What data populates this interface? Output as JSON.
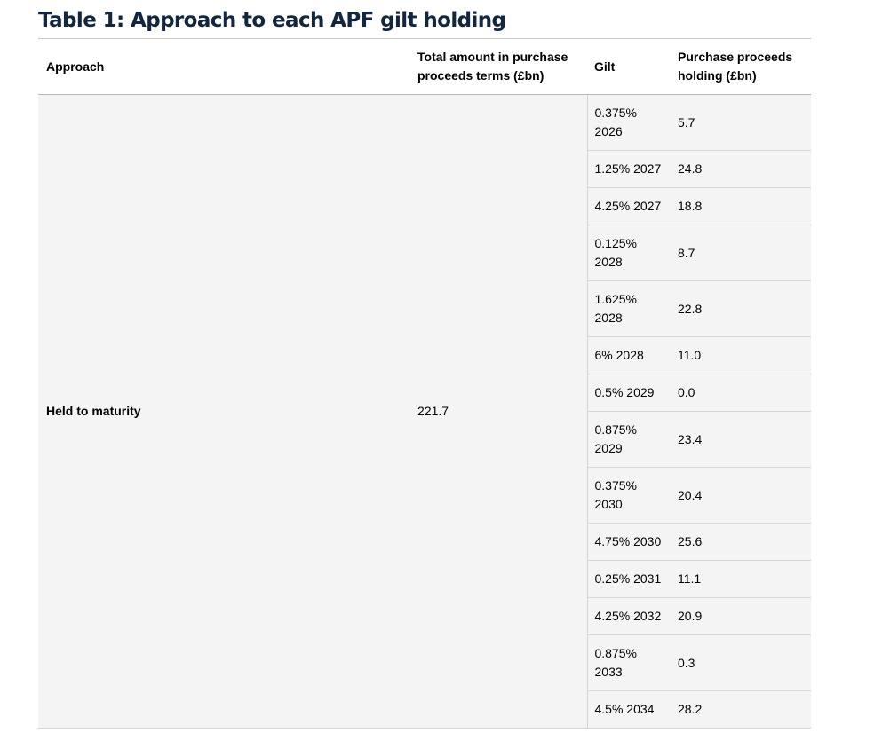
{
  "title": "Table 1: Approach to each APF gilt holding",
  "columns": {
    "approach": "Approach",
    "total": "Total amount in purchase proceeds terms (£bn)",
    "gilt": "Gilt",
    "holding": "Purchase proceeds holding (£bn)"
  },
  "group": {
    "approach": "Held to maturity",
    "total": "221.7"
  },
  "rows": [
    {
      "gilt": "0.375% 2026",
      "holding": "5.7"
    },
    {
      "gilt": "1.25% 2027",
      "holding": "24.8"
    },
    {
      "gilt": "4.25% 2027",
      "holding": "18.8"
    },
    {
      "gilt": "0.125% 2028",
      "holding": "8.7"
    },
    {
      "gilt": "1.625% 2028",
      "holding": "22.8"
    },
    {
      "gilt": "6% 2028",
      "holding": "11.0"
    },
    {
      "gilt": "0.5% 2029",
      "holding": "0.0"
    },
    {
      "gilt": "0.875% 2029",
      "holding": "23.4"
    },
    {
      "gilt": "0.375% 2030",
      "holding": "20.4"
    },
    {
      "gilt": "4.75% 2030",
      "holding": "25.6"
    },
    {
      "gilt": "0.25% 2031",
      "holding": "11.1"
    },
    {
      "gilt": "4.25% 2032",
      "holding": "20.9"
    },
    {
      "gilt": "0.875% 2033",
      "holding": "0.3"
    },
    {
      "gilt": "4.5% 2034",
      "holding": "28.2"
    }
  ]
}
